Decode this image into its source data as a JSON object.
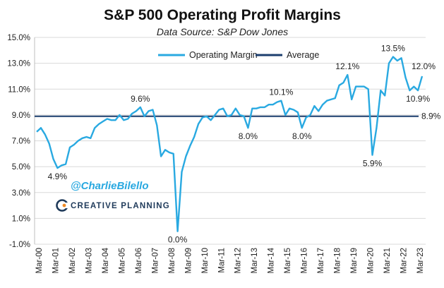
{
  "chart_data": {
    "type": "line",
    "title": "S&P 500 Operating Profit Margins",
    "subtitle": "Data Source: S&P Dow Jones",
    "xlabel": "",
    "ylabel": "",
    "ylim": [
      -1.0,
      15.0
    ],
    "yticks": [
      "-1.0%",
      "1.0%",
      "3.0%",
      "5.0%",
      "7.0%",
      "9.0%",
      "11.0%",
      "13.0%",
      "15.0%"
    ],
    "ytick_values": [
      -1,
      1,
      3,
      5,
      7,
      9,
      11,
      13,
      15
    ],
    "x_tick_labels": [
      "Mar-00",
      "Mar-01",
      "Mar-02",
      "Mar-03",
      "Mar-04",
      "Mar-05",
      "Mar-06",
      "Mar-07",
      "Mar-08",
      "Mar-09",
      "Mar-10",
      "Mar-11",
      "Mar-12",
      "Mar-13",
      "Mar-14",
      "Mar-15",
      "Mar-16",
      "Mar-17",
      "Mar-18",
      "Mar-19",
      "Mar-20",
      "Mar-21",
      "Mar-22",
      "Mar-23"
    ],
    "grid": "horizontal",
    "legend_position": "top",
    "series": [
      {
        "name": "Operating Margin",
        "color": "#29A9E1",
        "values": [
          7.7,
          8.0,
          7.5,
          6.8,
          5.6,
          4.9,
          5.1,
          5.2,
          6.5,
          6.7,
          7.0,
          7.2,
          7.3,
          7.2,
          8.0,
          8.3,
          8.5,
          8.7,
          8.6,
          8.6,
          9.0,
          8.6,
          8.7,
          9.1,
          9.3,
          9.6,
          8.9,
          9.3,
          9.4,
          8.2,
          5.8,
          6.3,
          6.1,
          6.0,
          0.0,
          4.6,
          5.8,
          6.6,
          7.3,
          8.3,
          8.8,
          8.9,
          8.6,
          9.0,
          9.4,
          9.5,
          8.9,
          9.0,
          9.5,
          9.0,
          8.9,
          8.0,
          9.5,
          9.5,
          9.6,
          9.6,
          9.8,
          9.8,
          10.0,
          10.1,
          9.0,
          9.5,
          9.4,
          9.2,
          8.0,
          8.8,
          9.0,
          9.7,
          9.3,
          9.8,
          10.1,
          10.2,
          10.3,
          11.3,
          11.5,
          12.1,
          10.2,
          11.2,
          11.2,
          11.2,
          11.0,
          5.9,
          8.0,
          10.9,
          10.5,
          13.0,
          13.5,
          13.2,
          13.4,
          11.9,
          10.9,
          11.2,
          10.9,
          12.0
        ]
      },
      {
        "name": "Average",
        "color": "#1C3E6E",
        "values": [
          8.9
        ]
      }
    ],
    "annotations": [
      {
        "label": "4.9%",
        "index": 5
      },
      {
        "label": "9.6%",
        "index": 25
      },
      {
        "label": "0.0%",
        "index": 34
      },
      {
        "label": "8.0%",
        "index": 51
      },
      {
        "label": "10.1%",
        "index": 59
      },
      {
        "label": "8.0%",
        "index": 64
      },
      {
        "label": "12.1%",
        "index": 75
      },
      {
        "label": "5.9%",
        "index": 81
      },
      {
        "label": "13.5%",
        "index": 86
      },
      {
        "label": "10.9%",
        "index": 92
      },
      {
        "label": "12.0%",
        "index": 93
      },
      {
        "label": "8.9%",
        "index": -1
      }
    ]
  },
  "watermark": {
    "handle": "@CharlieBilello",
    "brand": "CREATIVE PLANNING"
  }
}
